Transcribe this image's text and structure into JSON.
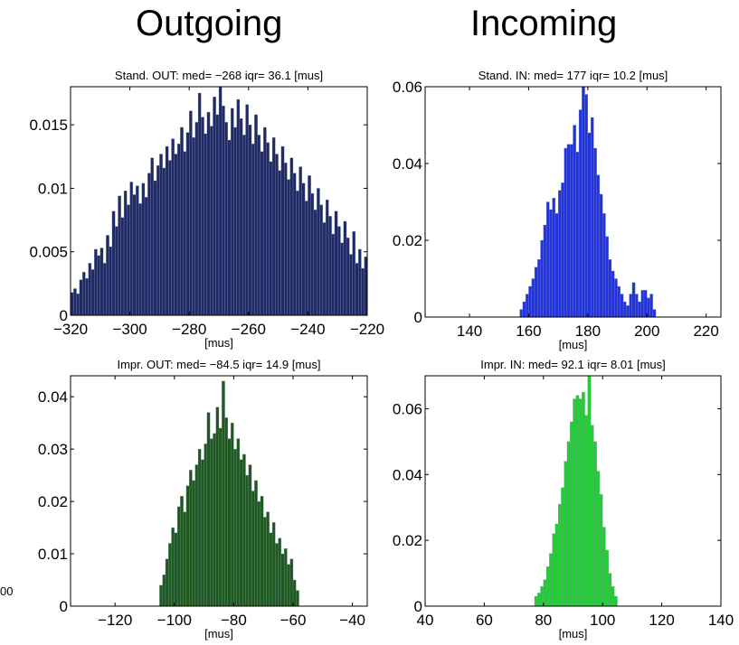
{
  "header": {
    "left_title": "Outgoing",
    "right_title": "Incoming",
    "stray_text": "00"
  },
  "chart_data": [
    {
      "type": "bar",
      "title": "Stand. OUT: med= −268 iqr= 36.1 [mus]",
      "xlabel": "[mus]",
      "ylabel": "",
      "xlim": [
        -320,
        -220
      ],
      "ylim": [
        0,
        0.018
      ],
      "xticks": [
        -320,
        -300,
        -280,
        -260,
        -240,
        -220
      ],
      "xtick_labels": [
        "−320",
        "−300",
        "−280",
        "−260",
        "−240",
        "−220"
      ],
      "yticks": [
        0,
        0.005,
        0.01,
        0.015
      ],
      "ytick_labels": [
        "0",
        "0.005",
        "0.01",
        "0.015"
      ],
      "bin_width": 1,
      "x": [
        -320,
        -319,
        -318,
        -317,
        -316,
        -315,
        -314,
        -313,
        -312,
        -311,
        -310,
        -309,
        -308,
        -307,
        -306,
        -305,
        -304,
        -303,
        -302,
        -301,
        -300,
        -299,
        -298,
        -297,
        -296,
        -295,
        -294,
        -293,
        -292,
        -291,
        -290,
        -289,
        -288,
        -287,
        -286,
        -285,
        -284,
        -283,
        -282,
        -281,
        -280,
        -279,
        -278,
        -277,
        -276,
        -275,
        -274,
        -273,
        -272,
        -271,
        -270,
        -269,
        -268,
        -267,
        -266,
        -265,
        -264,
        -263,
        -262,
        -261,
        -260,
        -259,
        -258,
        -257,
        -256,
        -255,
        -254,
        -253,
        -252,
        -251,
        -250,
        -249,
        -248,
        -247,
        -246,
        -245,
        -244,
        -243,
        -242,
        -241,
        -240,
        -239,
        -238,
        -237,
        -236,
        -235,
        -234,
        -233,
        -232,
        -231,
        -230,
        -229,
        -228,
        -227,
        -226,
        -225,
        -224,
        -223,
        -222,
        -221
      ],
      "values": [
        0.0018,
        0.0021,
        0.0017,
        0.0028,
        0.0034,
        0.0029,
        0.0041,
        0.0036,
        0.0052,
        0.0047,
        0.0053,
        0.0041,
        0.0063,
        0.0054,
        0.0082,
        0.007,
        0.0094,
        0.0077,
        0.0098,
        0.0087,
        0.0105,
        0.0095,
        0.0102,
        0.0088,
        0.0104,
        0.0093,
        0.0112,
        0.0124,
        0.0106,
        0.0118,
        0.0127,
        0.0116,
        0.0133,
        0.0122,
        0.0139,
        0.0127,
        0.0135,
        0.0148,
        0.0129,
        0.0144,
        0.0161,
        0.014,
        0.0152,
        0.0175,
        0.0156,
        0.0143,
        0.016,
        0.0149,
        0.0172,
        0.0158,
        0.0181,
        0.0165,
        0.0152,
        0.0138,
        0.0163,
        0.0148,
        0.017,
        0.0155,
        0.0142,
        0.0166,
        0.015,
        0.0135,
        0.0158,
        0.0142,
        0.0129,
        0.0148,
        0.0136,
        0.0121,
        0.014,
        0.0127,
        0.0114,
        0.0133,
        0.012,
        0.0107,
        0.0124,
        0.0112,
        0.0098,
        0.0117,
        0.0104,
        0.009,
        0.011,
        0.0096,
        0.0083,
        0.01,
        0.0087,
        0.0073,
        0.0091,
        0.0078,
        0.0064,
        0.0082,
        0.007,
        0.0057,
        0.0074,
        0.0061,
        0.0048,
        0.0066,
        0.0041,
        0.0052,
        0.0037,
        0.0046
      ],
      "color": "#1f2a66"
    },
    {
      "type": "bar",
      "title": "Stand. IN: med= 177 iqr= 10.2 [mus]",
      "xlabel": "[mus]",
      "ylabel": "",
      "xlim": [
        125,
        225
      ],
      "ylim": [
        0,
        0.06
      ],
      "xticks": [
        140,
        160,
        180,
        200,
        220
      ],
      "xtick_labels": [
        "140",
        "160",
        "180",
        "200",
        "220"
      ],
      "yticks": [
        0,
        0.02,
        0.04,
        0.06
      ],
      "ytick_labels": [
        "0",
        "0.02",
        "0.04",
        "0.06"
      ],
      "bin_width": 1,
      "x": [
        157,
        158,
        159,
        160,
        161,
        162,
        163,
        164,
        165,
        166,
        167,
        168,
        169,
        170,
        171,
        172,
        173,
        174,
        175,
        176,
        177,
        178,
        179,
        180,
        181,
        182,
        183,
        184,
        185,
        186,
        187,
        188,
        189,
        190,
        191,
        192,
        193,
        194,
        195,
        196,
        197,
        198,
        199,
        200,
        201,
        202
      ],
      "values": [
        0.002,
        0.004,
        0.006,
        0.008,
        0.01,
        0.013,
        0.015,
        0.02,
        0.024,
        0.03,
        0.028,
        0.031,
        0.027,
        0.033,
        0.035,
        0.044,
        0.045,
        0.045,
        0.05,
        0.043,
        0.054,
        0.061,
        0.058,
        0.048,
        0.052,
        0.044,
        0.037,
        0.032,
        0.027,
        0.021,
        0.015,
        0.012,
        0.01,
        0.008,
        0.006,
        0.004,
        0.003,
        0.006,
        0.009,
        0.006,
        0.004,
        0.007,
        0.007,
        0.005,
        0.006,
        0.002
      ],
      "color": "#2233dd"
    },
    {
      "type": "bar",
      "title": "Impr. OUT: med= −84.5 iqr= 14.9 [mus]",
      "xlabel": "[mus]",
      "ylabel": "",
      "xlim": [
        -135,
        -35
      ],
      "ylim": [
        0,
        0.044
      ],
      "xticks": [
        -120,
        -100,
        -80,
        -60,
        -40
      ],
      "xtick_labels": [
        "−120",
        "−100",
        "−80",
        "−60",
        "−40"
      ],
      "yticks": [
        0,
        0.01,
        0.02,
        0.03,
        0.04
      ],
      "ytick_labels": [
        "0",
        "0.01",
        "0.02",
        "0.03",
        "0.04"
      ],
      "bin_width": 1,
      "x": [
        -105,
        -104,
        -103,
        -102,
        -101,
        -100,
        -99,
        -98,
        -97,
        -96,
        -95,
        -94,
        -93,
        -92,
        -91,
        -90,
        -89,
        -88,
        -87,
        -86,
        -85,
        -84,
        -83,
        -82,
        -81,
        -80,
        -79,
        -78,
        -77,
        -76,
        -75,
        -74,
        -73,
        -72,
        -71,
        -70,
        -69,
        -68,
        -67,
        -66,
        -65,
        -64,
        -63,
        -62,
        -61,
        -60,
        -59
      ],
      "values": [
        0.004,
        0.006,
        0.009,
        0.012,
        0.015,
        0.014,
        0.019,
        0.021,
        0.018,
        0.023,
        0.026,
        0.024,
        0.027,
        0.03,
        0.028,
        0.031,
        0.037,
        0.032,
        0.033,
        0.038,
        0.034,
        0.043,
        0.036,
        0.032,
        0.035,
        0.03,
        0.032,
        0.028,
        0.029,
        0.025,
        0.027,
        0.022,
        0.024,
        0.02,
        0.021,
        0.017,
        0.018,
        0.014,
        0.016,
        0.012,
        0.013,
        0.01,
        0.011,
        0.008,
        0.009,
        0.005,
        0.003
      ],
      "color": "#1e5a1e"
    },
    {
      "type": "bar",
      "title": "Impr. IN: med= 92.1 iqr= 8.01 [mus]",
      "xlabel": "[mus]",
      "ylabel": "",
      "xlim": [
        40,
        140
      ],
      "ylim": [
        0,
        0.07
      ],
      "xticks": [
        40,
        60,
        80,
        100,
        120,
        140
      ],
      "xtick_labels": [
        "40",
        "60",
        "80",
        "100",
        "120",
        "140"
      ],
      "yticks": [
        0,
        0.02,
        0.04,
        0.06
      ],
      "ytick_labels": [
        "0",
        "0.02",
        "0.04",
        "0.06"
      ],
      "bin_width": 1,
      "x": [
        77,
        78,
        79,
        80,
        81,
        82,
        83,
        84,
        85,
        86,
        87,
        88,
        89,
        90,
        91,
        92,
        93,
        94,
        95,
        96,
        97,
        98,
        99,
        100,
        101,
        102,
        103,
        104
      ],
      "values": [
        0.003,
        0.004,
        0.006,
        0.008,
        0.012,
        0.016,
        0.022,
        0.025,
        0.031,
        0.036,
        0.044,
        0.05,
        0.056,
        0.063,
        0.064,
        0.063,
        0.065,
        0.058,
        0.07,
        0.055,
        0.05,
        0.041,
        0.034,
        0.024,
        0.017,
        0.01,
        0.006,
        0.003
      ],
      "color": "#22cc33"
    }
  ]
}
